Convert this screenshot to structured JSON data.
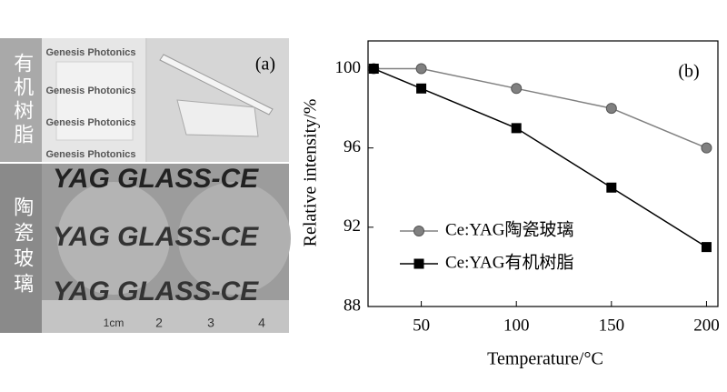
{
  "photo": {
    "label": "(a)",
    "resin_label": "有机树脂",
    "glass_label": "陶瓷玻璃",
    "brand": "Genesis Photonics",
    "glass_text": "YAG GLASS-CE",
    "ruler_unit": "1cm",
    "ruler_numbers": [
      "2",
      "3",
      "4"
    ]
  },
  "chart_data": {
    "type": "line",
    "label": "(b)",
    "x_label": "Temperature/°C",
    "y_label": "Relative intensity/%",
    "x": [
      25,
      50,
      100,
      150,
      200
    ],
    "series": [
      {
        "name": "Ce:YAG陶瓷玻璃",
        "color": "#808080",
        "marker": "circle",
        "values": [
          100,
          100,
          99,
          98,
          96
        ]
      },
      {
        "name": "Ce:YAG有机树脂",
        "color": "#000000",
        "marker": "square",
        "values": [
          100,
          99,
          97,
          94,
          91
        ]
      }
    ],
    "xlim": [
      22,
      206
    ],
    "ylim": [
      88,
      101.4
    ],
    "xticks": [
      50,
      100,
      150,
      200
    ],
    "yticks": [
      88,
      92,
      96,
      100
    ],
    "grid": false
  }
}
